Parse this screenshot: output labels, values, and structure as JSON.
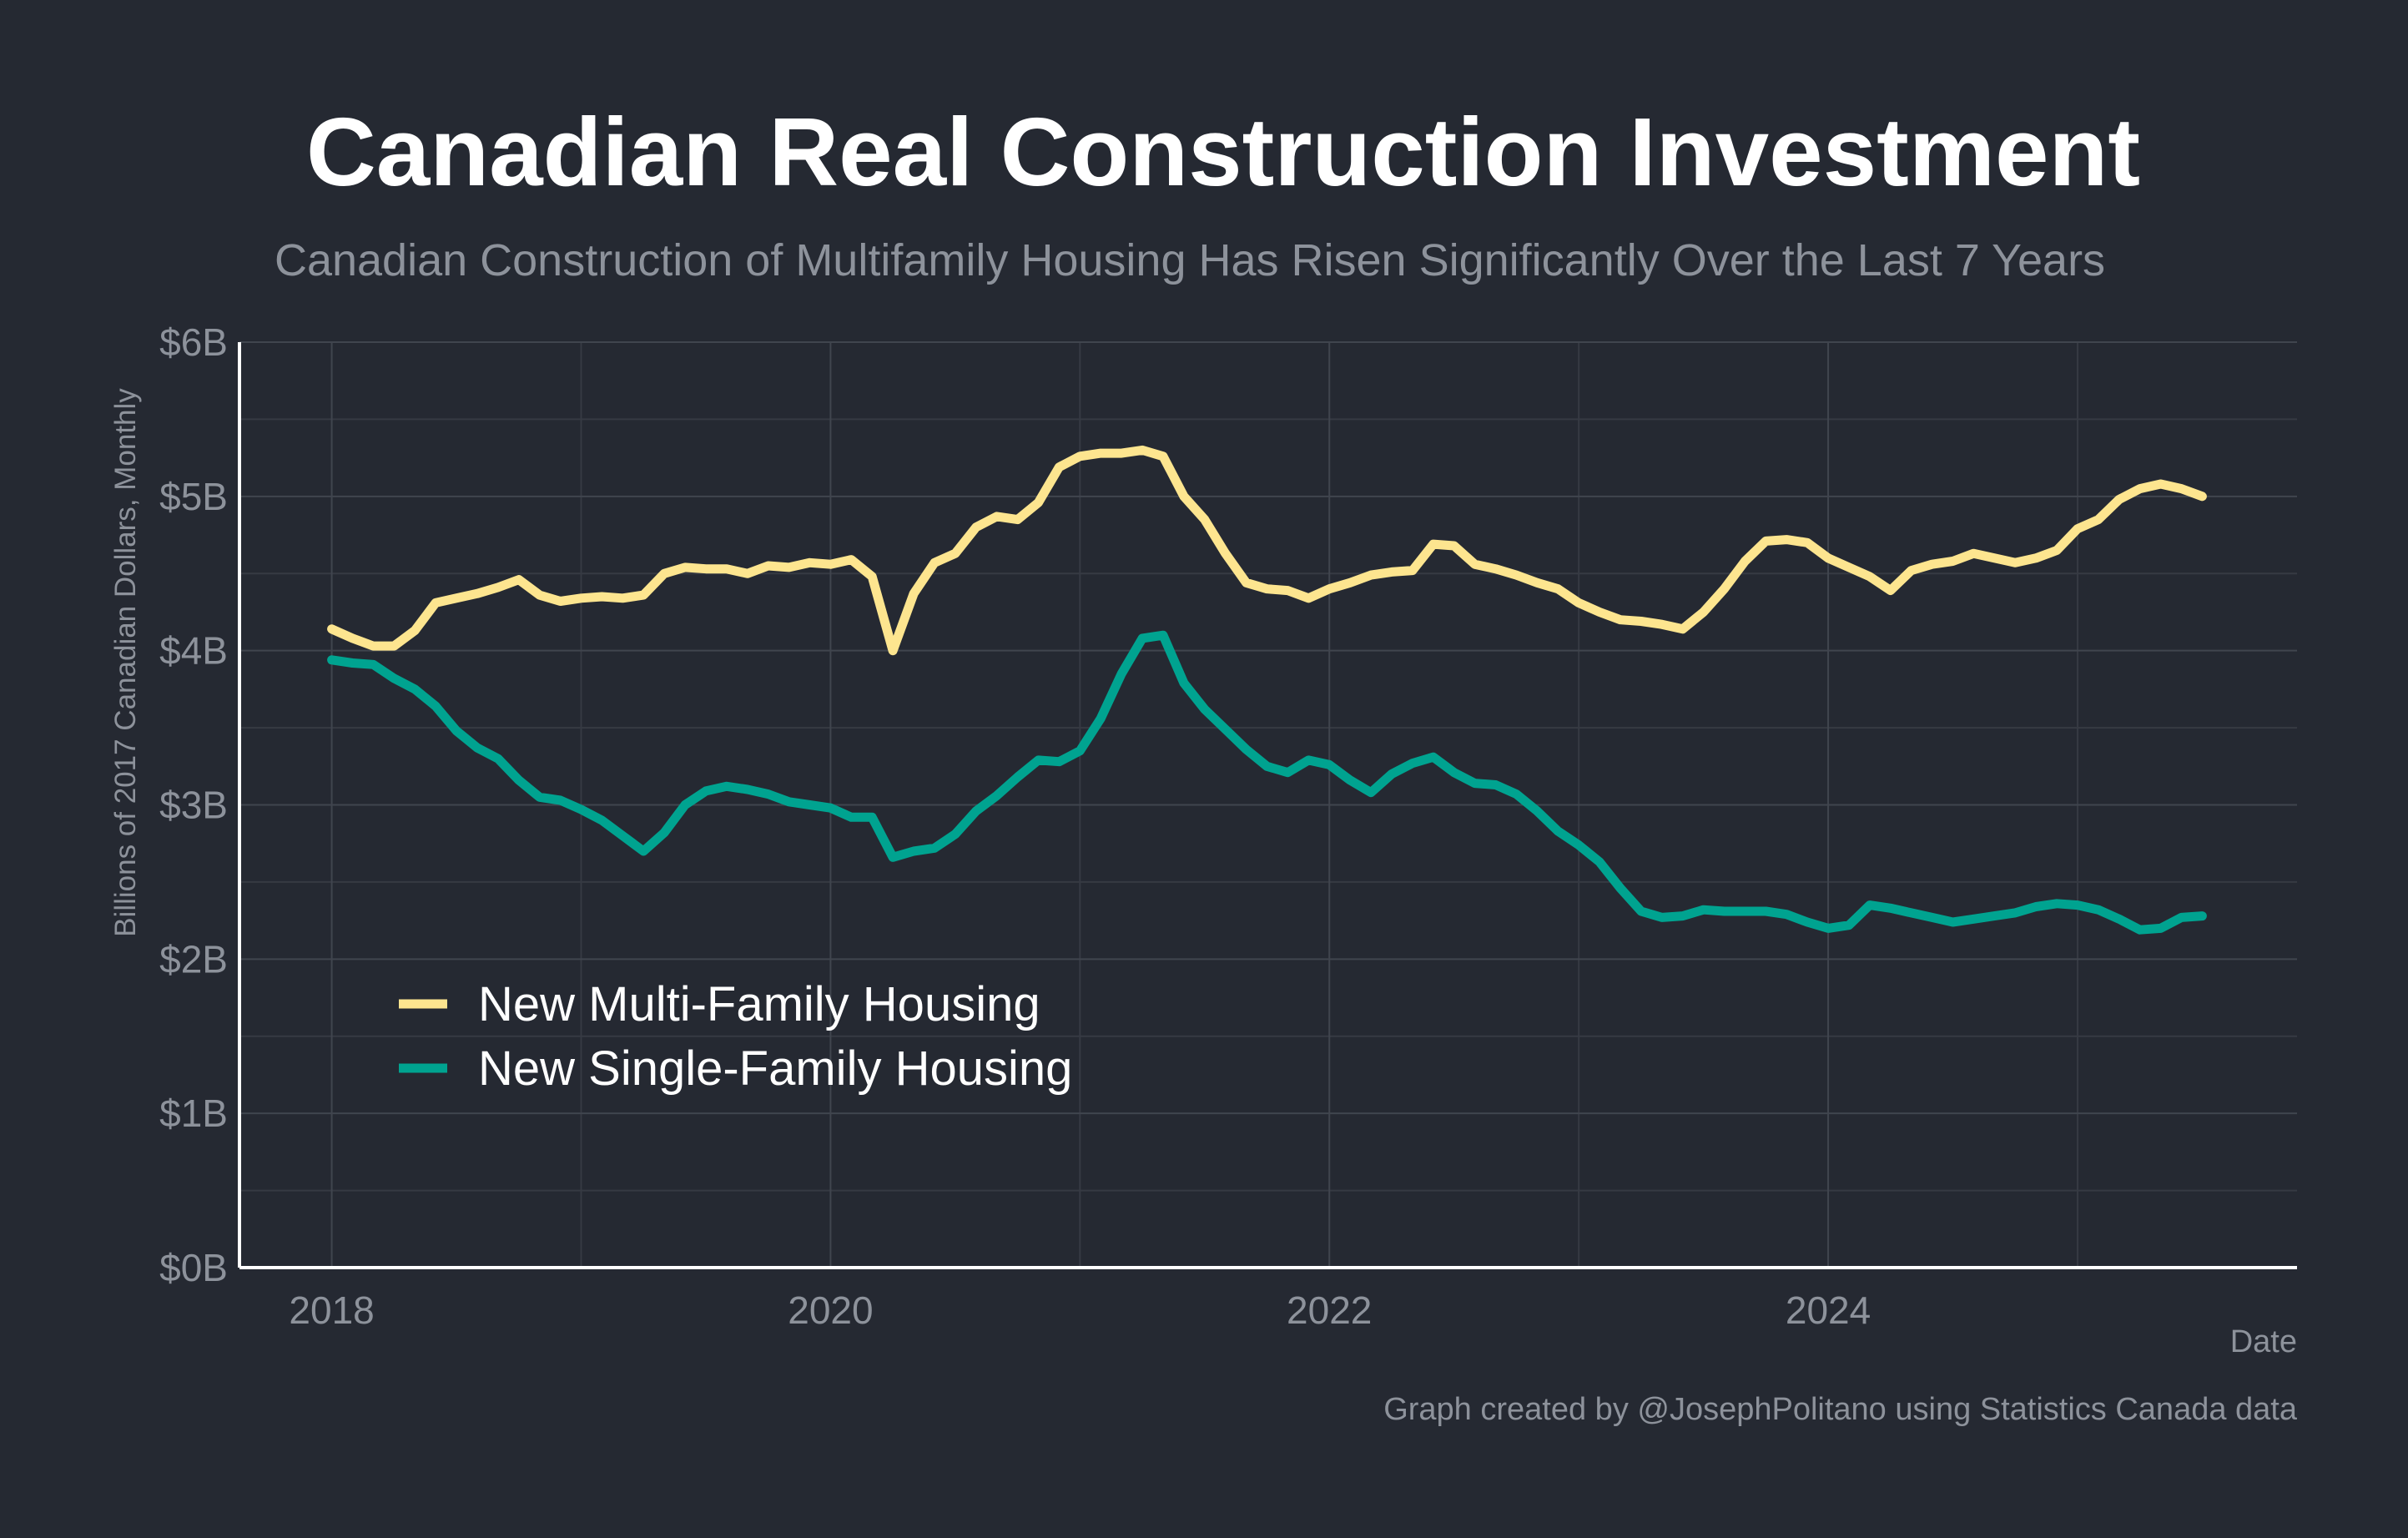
{
  "colors": {
    "background": "#252932",
    "multi_family": "#fde58f",
    "single_family": "#00a390"
  },
  "chart_data": {
    "type": "line",
    "title": "Canadian Real Construction Investment",
    "subtitle": "Canadian Construction of Multifamily Housing Has Risen Significantly Over the Last 7 Years",
    "xlabel": "Date",
    "ylabel": "Billions of 2017 Canadian Dollars, Monthly",
    "caption": "Graph created by @JosephPolitano using Statistics Canada data",
    "x_start": "2018-01",
    "x_end": "2025-06",
    "xlim": [
      2017.63,
      2025.88
    ],
    "ylim": [
      0,
      6
    ],
    "x_ticks": [
      {
        "value": 2018,
        "label": "2018"
      },
      {
        "value": 2020,
        "label": "2020"
      },
      {
        "value": 2022,
        "label": "2022"
      },
      {
        "value": 2024,
        "label": "2024"
      }
    ],
    "y_ticks": [
      {
        "value": 0,
        "label": "$0B"
      },
      {
        "value": 1,
        "label": "$1B"
      },
      {
        "value": 2,
        "label": "$2B"
      },
      {
        "value": 3,
        "label": "$3B"
      },
      {
        "value": 4,
        "label": "$4B"
      },
      {
        "value": 5,
        "label": "$5B"
      },
      {
        "value": 6,
        "label": "$6B"
      }
    ],
    "grid": true,
    "legend_position": "bottom-left",
    "series": [
      {
        "name": "New Multi-Family Housing",
        "color": "#fde58f",
        "values": [
          4.14,
          4.08,
          4.03,
          4.03,
          4.13,
          4.31,
          4.34,
          4.37,
          4.41,
          4.46,
          4.36,
          4.32,
          4.34,
          4.35,
          4.34,
          4.36,
          4.5,
          4.54,
          4.53,
          4.53,
          4.5,
          4.55,
          4.54,
          4.57,
          4.56,
          4.59,
          4.48,
          4.0,
          4.37,
          4.57,
          4.63,
          4.8,
          4.87,
          4.85,
          4.96,
          5.19,
          5.26,
          5.28,
          5.28,
          5.3,
          5.26,
          5.0,
          4.85,
          4.63,
          4.44,
          4.4,
          4.39,
          4.34,
          4.4,
          4.44,
          4.49,
          4.51,
          4.52,
          4.69,
          4.68,
          4.56,
          4.53,
          4.49,
          4.44,
          4.4,
          4.31,
          4.25,
          4.2,
          4.19,
          4.17,
          4.14,
          4.25,
          4.4,
          4.58,
          4.71,
          4.72,
          4.7,
          4.6,
          4.54,
          4.48,
          4.39,
          4.52,
          4.56,
          4.58,
          4.63,
          4.6,
          4.57,
          4.6,
          4.65,
          4.79,
          4.85,
          4.98,
          5.05,
          5.08,
          5.05,
          5.0
        ]
      },
      {
        "name": "New Single-Family Housing",
        "color": "#00a390",
        "values": [
          3.94,
          3.92,
          3.91,
          3.82,
          3.75,
          3.64,
          3.48,
          3.37,
          3.3,
          3.16,
          3.05,
          3.03,
          2.97,
          2.9,
          2.8,
          2.7,
          2.82,
          3.0,
          3.09,
          3.12,
          3.1,
          3.07,
          3.02,
          3.0,
          2.98,
          2.92,
          2.92,
          2.66,
          2.7,
          2.72,
          2.81,
          2.96,
          3.06,
          3.18,
          3.29,
          3.28,
          3.35,
          3.56,
          3.85,
          4.08,
          4.1,
          3.79,
          3.62,
          3.49,
          3.36,
          3.25,
          3.21,
          3.29,
          3.26,
          3.16,
          3.08,
          3.2,
          3.27,
          3.31,
          3.21,
          3.14,
          3.13,
          3.07,
          2.96,
          2.83,
          2.74,
          2.63,
          2.46,
          2.31,
          2.27,
          2.28,
          2.32,
          2.31,
          2.31,
          2.31,
          2.29,
          2.24,
          2.2,
          2.22,
          2.35,
          2.33,
          2.3,
          2.27,
          2.24,
          2.26,
          2.28,
          2.3,
          2.34,
          2.36,
          2.35,
          2.32,
          2.26,
          2.19,
          2.2,
          2.27,
          2.28
        ]
      }
    ]
  }
}
